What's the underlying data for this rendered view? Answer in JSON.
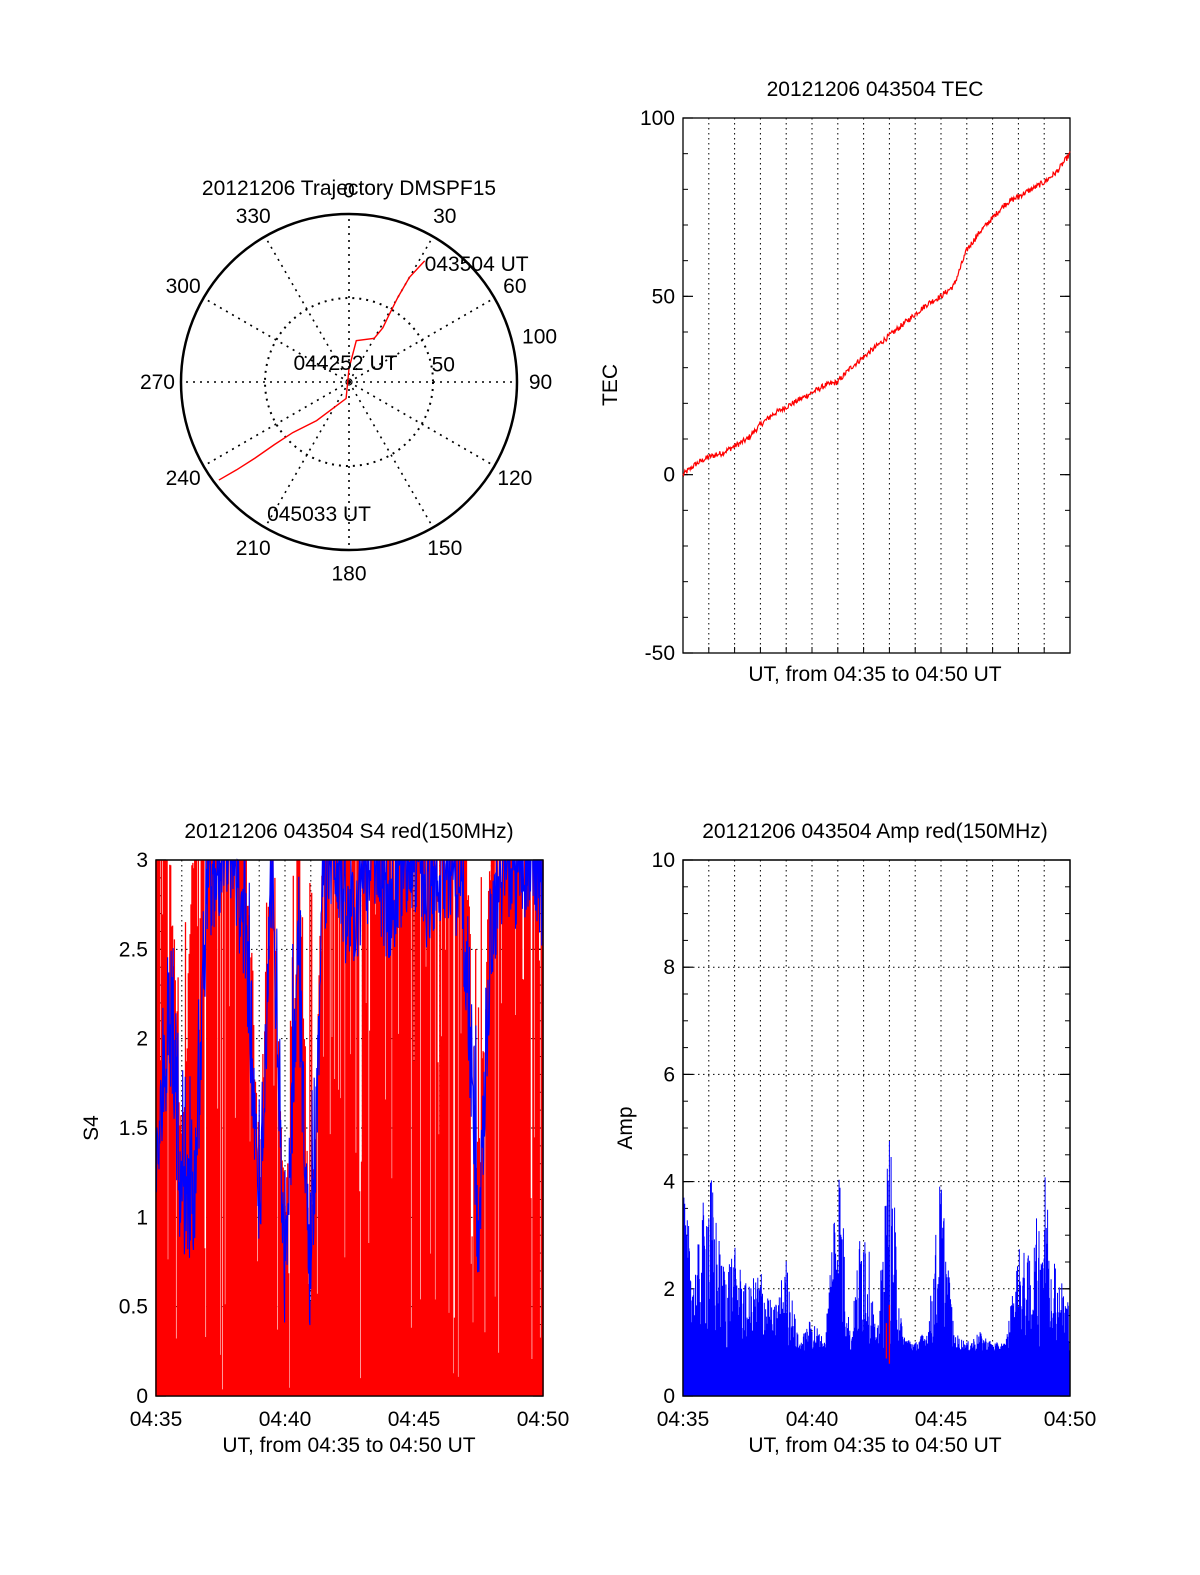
{
  "colors": {
    "red_series": "#ff0000",
    "blue_series": "#0000ff",
    "axis": "#000000",
    "grid": "#000000"
  },
  "chart_data": [
    {
      "id": "trajectory",
      "type": "polar",
      "title": "20121206 Trajectory DMSPF15",
      "azimuth_labels": [
        "0",
        "30",
        "60",
        "90",
        "120",
        "150",
        "180",
        "210",
        "240",
        "270",
        "300",
        "330"
      ],
      "radial_labels": [
        "50",
        "100"
      ],
      "radial_label_values": [
        50,
        100
      ],
      "radial_max": 100,
      "grid": true,
      "track": [
        {
          "az": 32,
          "r": 85
        },
        {
          "az": 30,
          "r": 72
        },
        {
          "az": 30,
          "r": 58
        },
        {
          "az": 31,
          "r": 45
        },
        {
          "az": 32,
          "r": 38
        },
        {
          "az": 30,
          "r": 30
        },
        {
          "az": 10,
          "r": 25
        },
        {
          "az": 0,
          "r": 8
        },
        {
          "az": 190,
          "r": 10
        },
        {
          "az": 220,
          "r": 30
        },
        {
          "az": 228,
          "r": 45
        },
        {
          "az": 230,
          "r": 58
        },
        {
          "az": 231,
          "r": 72
        },
        {
          "az": 232,
          "r": 85
        },
        {
          "az": 233,
          "r": 97
        }
      ],
      "annotations": [
        {
          "text": "043504 UT",
          "az": 32,
          "r": 85
        },
        {
          "text": "044252 UT",
          "az": 300,
          "r": 12
        },
        {
          "text": "045033 UT",
          "az": 215,
          "r": 85
        }
      ]
    },
    {
      "id": "tec",
      "type": "line",
      "title": "20121206 043504 TEC",
      "ylabel": "TEC",
      "xlabel": "UT, from 04:35 to 04:50 UT",
      "ylim": [
        -50,
        100
      ],
      "yticks": [
        -50,
        0,
        50,
        100
      ],
      "ytick_labels": [
        "-50",
        "0",
        "50",
        "100"
      ],
      "xlim": [
        0,
        15
      ],
      "grid": "vertical dotted",
      "x": [
        0,
        0.5,
        1,
        1.5,
        2,
        2.5,
        3,
        3.5,
        4,
        4.5,
        5,
        5.5,
        6,
        6.5,
        7,
        7.5,
        8,
        8.5,
        9,
        9.5,
        10,
        10.5,
        11,
        11.5,
        12,
        12.5,
        13,
        13.5,
        14,
        14.5,
        15
      ],
      "series": [
        {
          "values": [
            0,
            3,
            5,
            6,
            8,
            10,
            14,
            17,
            19,
            21,
            23,
            25,
            26,
            30,
            33,
            36,
            39,
            42,
            45,
            48,
            50,
            53,
            63,
            68,
            72,
            76,
            78,
            80,
            82,
            85,
            90
          ]
        }
      ]
    },
    {
      "id": "s4",
      "type": "line",
      "title": "20121206 043504 S4 red(150MHz)",
      "ylabel": "S4",
      "xlabel": "UT, from 04:35 to 04:50 UT",
      "ylim": [
        0,
        3
      ],
      "yticks": [
        0,
        0.5,
        1,
        1.5,
        2,
        2.5,
        3
      ],
      "ytick_labels": [
        "0",
        "0.5",
        "1",
        "1.5",
        "2",
        "2.5",
        "3"
      ],
      "xlim": [
        0,
        15
      ],
      "xtick_labels": [
        "04:35",
        "04:40",
        "04:45",
        "04:50"
      ],
      "grid": "dotted",
      "x": [
        0,
        0.5,
        1,
        1.5,
        2,
        2.5,
        3,
        3.5,
        4,
        4.5,
        5,
        5.5,
        6,
        6.5,
        7,
        7.5,
        8,
        8.5,
        9,
        9.5,
        10,
        10.5,
        11,
        11.5,
        12,
        12.5,
        13,
        13.5,
        14,
        14.5,
        15
      ],
      "series": [
        {
          "color": "red",
          "values": [
            3,
            3,
            1.1,
            3,
            3,
            3,
            3,
            3,
            1,
            3,
            0.8,
            3,
            0.5,
            3,
            3,
            3,
            3,
            3,
            3,
            3,
            3,
            3,
            3,
            3,
            3,
            0.9,
            3,
            3,
            3,
            3,
            3
          ]
        },
        {
          "color": "blue",
          "values": [
            1.2,
            2.1,
            1.0,
            1.1,
            2.8,
            3,
            3,
            2.5,
            1.0,
            2.9,
            0.6,
            2.4,
            0.5,
            2.9,
            3,
            2.6,
            2.8,
            3,
            2.7,
            2.9,
            3,
            2.8,
            2.9,
            3,
            2.5,
            0.8,
            2.6,
            3,
            2.9,
            3,
            2.8
          ]
        }
      ]
    },
    {
      "id": "amp",
      "type": "line",
      "title": "20121206 043504 Amp red(150MHz)",
      "ylabel": "Amp",
      "xlabel": "UT, from 04:35 to 04:50 UT",
      "ylim": [
        0,
        10
      ],
      "yticks": [
        0,
        2,
        4,
        6,
        8,
        10
      ],
      "ytick_labels": [
        "0",
        "2",
        "4",
        "6",
        "8",
        "10"
      ],
      "xlim": [
        0,
        15
      ],
      "xtick_labels": [
        "04:35",
        "04:40",
        "04:45",
        "04:50"
      ],
      "grid": "dotted",
      "x": [
        0,
        0.5,
        1,
        1.5,
        2,
        2.5,
        3,
        3.5,
        4,
        4.5,
        5,
        5.5,
        6,
        6.5,
        7,
        7.5,
        8,
        8.5,
        9,
        9.5,
        10,
        10.5,
        11,
        11.5,
        12,
        12.5,
        13,
        13.5,
        14,
        14.5,
        15
      ],
      "series": [
        {
          "color": "blue",
          "values": [
            3.8,
            2.5,
            4.5,
            2.6,
            2.8,
            2.0,
            2.5,
            1.6,
            2.6,
            1.0,
            1.5,
            1.0,
            5.0,
            1.0,
            4.0,
            1.0,
            5.1,
            1.2,
            1.0,
            1.3,
            4.3,
            1.2,
            1.0,
            1.2,
            1.0,
            1.0,
            2.8,
            2.6,
            4.4,
            2.4,
            1.8
          ]
        },
        {
          "color": "red",
          "values": [
            0,
            0,
            0,
            0,
            0,
            0,
            0,
            0,
            0,
            0,
            0,
            0,
            0,
            0,
            0,
            0,
            1.7,
            0,
            0,
            0,
            0,
            0,
            0,
            0,
            0,
            0,
            0,
            0,
            0,
            0,
            0
          ]
        }
      ]
    }
  ]
}
